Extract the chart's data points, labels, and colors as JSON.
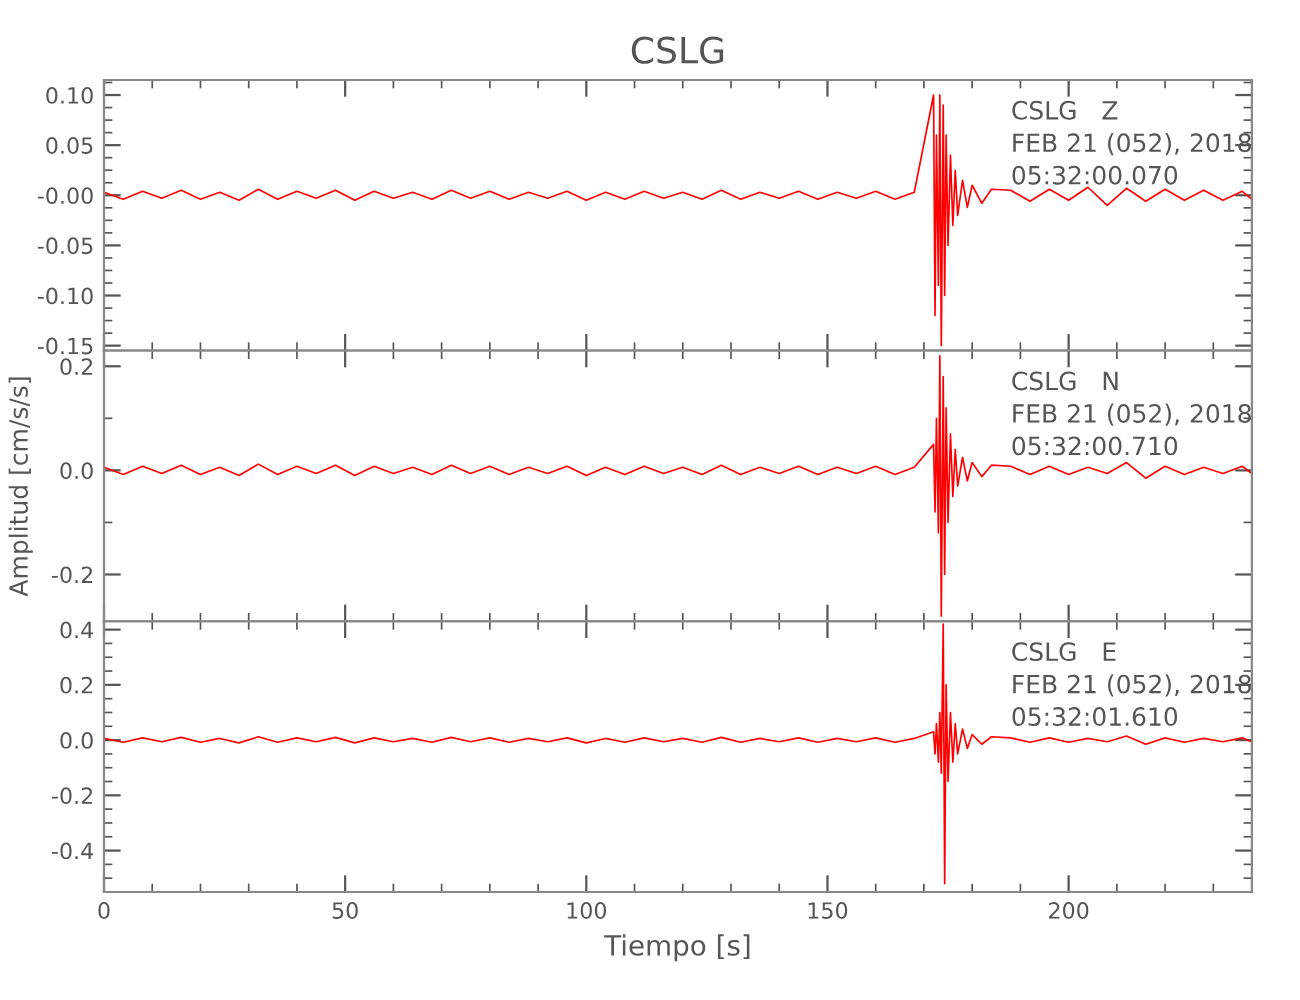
{
  "chart_data": [
    {
      "type": "line",
      "title": "CSLG",
      "xlim": [
        0,
        238
      ],
      "xticks": [
        0,
        50,
        100,
        150,
        200
      ],
      "ylim": [
        -0.155,
        0.115
      ],
      "yticks": [
        {
          "value": 0.1,
          "label": "0.10"
        },
        {
          "value": 0.05,
          "label": "0.05"
        },
        {
          "value": 0,
          "label": "-0.00"
        },
        {
          "value": -0.05,
          "label": "-0.05"
        },
        {
          "value": -0.1,
          "label": "-0.10"
        },
        {
          "value": -0.15,
          "label": "-0.15"
        }
      ],
      "tick_labels": "y",
      "grid": false,
      "legend": false,
      "marker": "none",
      "line_style": "solid",
      "annotations": [
        "CSLG   Z",
        "FEB 21 (052), 2018",
        "05:32:00.070"
      ],
      "x": [
        0,
        4,
        8,
        12,
        16,
        20,
        24,
        28,
        32,
        36,
        40,
        44,
        48,
        52,
        56,
        60,
        64,
        68,
        72,
        76,
        80,
        84,
        88,
        92,
        96,
        100,
        104,
        108,
        112,
        116,
        120,
        124,
        128,
        132,
        136,
        140,
        144,
        148,
        152,
        156,
        160,
        164,
        168,
        172,
        172.3,
        172.6,
        173,
        173.3,
        173.6,
        174,
        174.3,
        174.6,
        175,
        175.5,
        176,
        176.5,
        177,
        178,
        179,
        180,
        182,
        184,
        188,
        192,
        196,
        200,
        204,
        208,
        212,
        216,
        220,
        224,
        228,
        232,
        236,
        238
      ],
      "series": [
        {
          "color": "#ff0000",
          "values": [
            0.003,
            -0.004,
            0.004,
            -0.003,
            0.005,
            -0.004,
            0.003,
            -0.005,
            0.006,
            -0.004,
            0.004,
            -0.003,
            0.005,
            -0.005,
            0.004,
            -0.003,
            0.003,
            -0.004,
            0.005,
            -0.003,
            0.004,
            -0.004,
            0.003,
            -0.003,
            0.004,
            -0.005,
            0.003,
            -0.004,
            0.004,
            -0.003,
            0.003,
            -0.004,
            0.005,
            -0.004,
            0.003,
            -0.003,
            0.004,
            -0.004,
            0.003,
            -0.003,
            0.004,
            -0.004,
            0.003,
            0.1,
            -0.12,
            0.06,
            -0.09,
            0.1,
            -0.15,
            0.09,
            -0.1,
            0.06,
            -0.05,
            0.04,
            -0.03,
            0.025,
            -0.02,
            0.015,
            -0.012,
            0.01,
            -0.008,
            0.006,
            0.005,
            -0.006,
            0.006,
            -0.005,
            0.008,
            -0.01,
            0.007,
            -0.006,
            0.006,
            -0.005,
            0.005,
            -0.005,
            0.004,
            -0.004
          ]
        }
      ]
    },
    {
      "type": "line",
      "ylabel": "Amplitud [cm/s/s]",
      "xlim": [
        0,
        238
      ],
      "xticks": [
        0,
        50,
        100,
        150,
        200
      ],
      "ylim": [
        -0.29,
        0.23
      ],
      "yticks": [
        {
          "value": 0.2,
          "label": "0.2"
        },
        {
          "value": 0,
          "label": "0.0"
        },
        {
          "value": -0.2,
          "label": "-0.2"
        }
      ],
      "tick_labels": "y",
      "grid": false,
      "legend": false,
      "marker": "none",
      "line_style": "solid",
      "annotations": [
        "CSLG   N",
        "FEB 21 (052), 2018",
        "05:32:00.710"
      ],
      "x": [
        0,
        4,
        8,
        12,
        16,
        20,
        24,
        28,
        32,
        36,
        40,
        44,
        48,
        52,
        56,
        60,
        64,
        68,
        72,
        76,
        80,
        84,
        88,
        92,
        96,
        100,
        104,
        108,
        112,
        116,
        120,
        124,
        128,
        132,
        136,
        140,
        144,
        148,
        152,
        156,
        160,
        164,
        168,
        172,
        172.3,
        172.6,
        173,
        173.3,
        173.6,
        174,
        174.3,
        174.6,
        175,
        175.5,
        176,
        176.5,
        177,
        178,
        179,
        180,
        182,
        184,
        188,
        192,
        196,
        200,
        204,
        208,
        212,
        216,
        220,
        224,
        228,
        232,
        236,
        238
      ],
      "series": [
        {
          "color": "#ff0000",
          "values": [
            0.006,
            -0.008,
            0.008,
            -0.006,
            0.01,
            -0.008,
            0.006,
            -0.01,
            0.012,
            -0.008,
            0.008,
            -0.006,
            0.01,
            -0.01,
            0.008,
            -0.006,
            0.006,
            -0.008,
            0.01,
            -0.006,
            0.008,
            -0.008,
            0.006,
            -0.006,
            0.008,
            -0.01,
            0.006,
            -0.008,
            0.008,
            -0.006,
            0.006,
            -0.008,
            0.01,
            -0.008,
            0.006,
            -0.006,
            0.008,
            -0.008,
            0.006,
            -0.006,
            0.008,
            -0.008,
            0.006,
            0.05,
            -0.08,
            0.1,
            -0.12,
            0.22,
            -0.28,
            0.18,
            -0.2,
            0.12,
            -0.1,
            0.07,
            -0.05,
            0.04,
            -0.03,
            0.025,
            -0.02,
            0.015,
            -0.012,
            0.01,
            0.008,
            -0.008,
            0.008,
            -0.008,
            0.006,
            -0.006,
            0.015,
            -0.015,
            0.008,
            -0.008,
            0.006,
            -0.006,
            0.008,
            -0.006
          ]
        }
      ]
    },
    {
      "type": "line",
      "xlabel": "Tiempo [s]",
      "xlim": [
        0,
        238
      ],
      "xticks": [
        0,
        50,
        100,
        150,
        200
      ],
      "ylim": [
        -0.55,
        0.43
      ],
      "yticks": [
        {
          "value": 0.4,
          "label": "0.4"
        },
        {
          "value": 0.2,
          "label": "0.2"
        },
        {
          "value": 0,
          "label": "0.0"
        },
        {
          "value": -0.2,
          "label": "-0.2"
        },
        {
          "value": -0.4,
          "label": "-0.4"
        }
      ],
      "grid": false,
      "legend": false,
      "marker": "none",
      "line_style": "solid",
      "annotations": [
        "CSLG   E",
        "FEB 21 (052), 2018",
        "05:32:01.610"
      ],
      "x": [
        0,
        4,
        8,
        12,
        16,
        20,
        24,
        28,
        32,
        36,
        40,
        44,
        48,
        52,
        56,
        60,
        64,
        68,
        72,
        76,
        80,
        84,
        88,
        92,
        96,
        100,
        104,
        108,
        112,
        116,
        120,
        124,
        128,
        132,
        136,
        140,
        144,
        148,
        152,
        156,
        160,
        164,
        168,
        172,
        172.3,
        172.6,
        173,
        173.3,
        173.6,
        174,
        174.3,
        174.6,
        175,
        175.5,
        176,
        176.5,
        177,
        178,
        179,
        180,
        182,
        184,
        188,
        192,
        196,
        200,
        204,
        208,
        212,
        216,
        220,
        224,
        228,
        232,
        236,
        238
      ],
      "series": [
        {
          "color": "#ff0000",
          "values": [
            0.006,
            -0.008,
            0.008,
            -0.006,
            0.01,
            -0.008,
            0.006,
            -0.01,
            0.012,
            -0.008,
            0.008,
            -0.006,
            0.01,
            -0.01,
            0.008,
            -0.006,
            0.006,
            -0.008,
            0.01,
            -0.006,
            0.008,
            -0.008,
            0.006,
            -0.006,
            0.008,
            -0.01,
            0.006,
            -0.008,
            0.008,
            -0.006,
            0.006,
            -0.008,
            0.01,
            -0.008,
            0.006,
            -0.006,
            0.008,
            -0.008,
            0.006,
            -0.006,
            0.008,
            -0.008,
            0.006,
            0.03,
            -0.05,
            0.06,
            -0.08,
            0.1,
            -0.12,
            0.42,
            -0.52,
            0.2,
            -0.15,
            0.1,
            -0.08,
            0.06,
            -0.05,
            0.04,
            -0.03,
            0.02,
            -0.015,
            0.012,
            0.008,
            -0.008,
            0.008,
            -0.008,
            0.006,
            -0.006,
            0.015,
            -0.015,
            0.008,
            -0.008,
            0.006,
            -0.006,
            0.008,
            -0.006
          ]
        }
      ]
    }
  ]
}
